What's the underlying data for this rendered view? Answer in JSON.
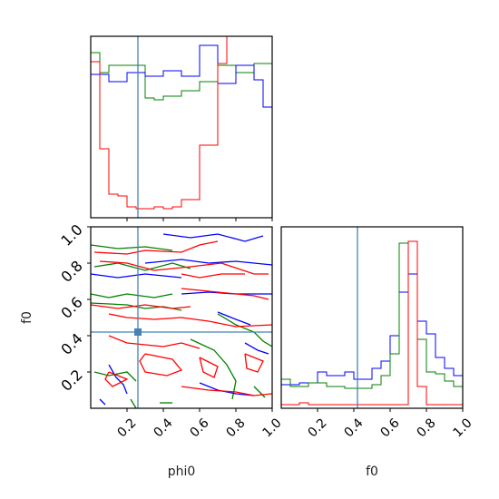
{
  "chart_data": {
    "type": "corner",
    "parameters": [
      {
        "name": "phi0",
        "range": [
          0.0,
          1.0
        ],
        "truth": 0.26,
        "ticks": [
          "0.2",
          "0.4",
          "0.6",
          "0.8",
          "1.0"
        ],
        "tick_values": [
          0.2,
          0.4,
          0.6,
          0.8,
          1.0
        ]
      },
      {
        "name": "f0",
        "range": [
          0.0,
          1.0
        ],
        "truth": 0.42,
        "ticks": [
          "0.2",
          "0.4",
          "0.6",
          "0.8",
          "1.0"
        ],
        "tick_values": [
          0.2,
          0.4,
          0.6,
          0.8,
          1.0
        ]
      }
    ],
    "series_colors": {
      "red": "#ff0000",
      "green": "#008000",
      "blue": "#0000ff",
      "truth": "#4682b4"
    },
    "hist_phi0": {
      "bin_edges": [
        0,
        0.05,
        0.1,
        0.15,
        0.2,
        0.25,
        0.3,
        0.35,
        0.4,
        0.45,
        0.5,
        0.55,
        0.6,
        0.65,
        0.7,
        0.75,
        0.8,
        0.85,
        0.9,
        0.95,
        1.0
      ],
      "ymax": 1.0,
      "green": [
        0.91,
        0.8,
        0.84,
        0.84,
        0.84,
        0.84,
        0.66,
        0.65,
        0.67,
        0.67,
        0.7,
        0.7,
        0.75,
        0.75,
        0.84,
        0.84,
        0.8,
        0.8,
        0.85,
        0.85
      ],
      "blue": [
        0.79,
        0.79,
        0.75,
        0.75,
        0.8,
        0.8,
        0.78,
        0.78,
        0.81,
        0.81,
        0.78,
        0.78,
        0.95,
        0.95,
        0.74,
        0.74,
        0.84,
        0.84,
        0.76,
        0.61
      ],
      "red": [
        0.86,
        0.38,
        0.13,
        0.12,
        0.06,
        0.05,
        0.05,
        0.06,
        0.05,
        0.06,
        0.1,
        0.1,
        0.4,
        0.4,
        0.85,
        1.05,
        1.05,
        1.05,
        1.05,
        1.05
      ]
    },
    "hist_f0": {
      "bin_edges": [
        0,
        0.05,
        0.1,
        0.15,
        0.2,
        0.25,
        0.3,
        0.35,
        0.4,
        0.45,
        0.5,
        0.55,
        0.6,
        0.65,
        0.7,
        0.75,
        0.8,
        0.85,
        0.9,
        0.95,
        1.0
      ],
      "ymax": 1.0,
      "blue": [
        0.13,
        0.13,
        0.14,
        0.14,
        0.2,
        0.18,
        0.18,
        0.2,
        0.16,
        0.16,
        0.22,
        0.26,
        0.4,
        0.64,
        0.74,
        0.48,
        0.41,
        0.28,
        0.22,
        0.18
      ],
      "green": [
        0.16,
        0.12,
        0.12,
        0.14,
        0.14,
        0.12,
        0.12,
        0.11,
        0.11,
        0.11,
        0.13,
        0.18,
        0.3,
        0.91,
        0.92,
        0.38,
        0.2,
        0.19,
        0.15,
        0.12
      ],
      "red": [
        0.02,
        0.02,
        0.03,
        0.02,
        0.02,
        0.02,
        0.02,
        0.02,
        0.02,
        0.02,
        0.02,
        0.02,
        0.02,
        0.02,
        0.92,
        0.12,
        0.02,
        0.02,
        0.02,
        0.02
      ]
    },
    "contours": {
      "red": [
        [
          [
            0.02,
            0.86
          ],
          [
            0.2,
            0.85
          ],
          [
            0.3,
            0.87
          ],
          [
            0.5,
            0.86
          ],
          [
            0.6,
            0.9
          ],
          [
            0.7,
            0.92
          ]
        ],
        [
          [
            0.05,
            0.81
          ],
          [
            0.2,
            0.8
          ],
          [
            0.35,
            0.76
          ],
          [
            0.55,
            0.78
          ],
          [
            0.72,
            0.8
          ],
          [
            0.9,
            0.74
          ],
          [
            0.98,
            0.74
          ]
        ],
        [
          [
            0.5,
            0.74
          ],
          [
            0.6,
            0.72
          ],
          [
            0.72,
            0.74
          ],
          [
            0.85,
            0.74
          ]
        ],
        [
          [
            0.5,
            0.66
          ],
          [
            0.7,
            0.64
          ],
          [
            0.9,
            0.62
          ],
          [
            0.98,
            0.6
          ]
        ],
        [
          [
            0.0,
            0.57
          ],
          [
            0.15,
            0.55
          ],
          [
            0.3,
            0.57
          ],
          [
            0.45,
            0.55
          ],
          [
            0.55,
            0.56
          ]
        ],
        [
          [
            0.1,
            0.52
          ],
          [
            0.2,
            0.5
          ],
          [
            0.35,
            0.49
          ],
          [
            0.5,
            0.5
          ],
          [
            0.65,
            0.48
          ],
          [
            0.8,
            0.45
          ],
          [
            1.0,
            0.46
          ]
        ],
        [
          [
            0.1,
            0.4
          ],
          [
            0.2,
            0.36
          ],
          [
            0.3,
            0.35
          ],
          [
            0.4,
            0.34
          ],
          [
            0.5,
            0.36
          ],
          [
            0.6,
            0.33
          ]
        ],
        [
          [
            0.3,
            0.3
          ],
          [
            0.45,
            0.27
          ],
          [
            0.5,
            0.21
          ],
          [
            0.42,
            0.18
          ],
          [
            0.3,
            0.2
          ],
          [
            0.27,
            0.26
          ],
          [
            0.3,
            0.3
          ]
        ],
        [
          [
            0.6,
            0.28
          ],
          [
            0.7,
            0.23
          ],
          [
            0.68,
            0.17
          ],
          [
            0.62,
            0.2
          ],
          [
            0.6,
            0.28
          ]
        ],
        [
          [
            0.1,
            0.2
          ],
          [
            0.2,
            0.16
          ],
          [
            0.12,
            0.12
          ],
          [
            0.08,
            0.16
          ],
          [
            0.1,
            0.2
          ]
        ],
        [
          [
            0.5,
            0.12
          ],
          [
            0.65,
            0.1
          ],
          [
            0.8,
            0.09
          ],
          [
            0.9,
            0.07
          ],
          [
            1.0,
            0.08
          ]
        ],
        [
          [
            0.85,
            0.3
          ],
          [
            0.95,
            0.26
          ],
          [
            0.92,
            0.2
          ],
          [
            0.86,
            0.22
          ],
          [
            0.85,
            0.3
          ]
        ]
      ],
      "green": [
        [
          [
            0.0,
            0.9
          ],
          [
            0.15,
            0.88
          ],
          [
            0.3,
            0.89
          ],
          [
            0.45,
            0.87
          ]
        ],
        [
          [
            0.02,
            0.78
          ],
          [
            0.15,
            0.8
          ],
          [
            0.3,
            0.76
          ],
          [
            0.45,
            0.8
          ],
          [
            0.55,
            0.77
          ]
        ],
        [
          [
            0.0,
            0.63
          ],
          [
            0.1,
            0.61
          ],
          [
            0.2,
            0.63
          ],
          [
            0.35,
            0.61
          ],
          [
            0.45,
            0.63
          ]
        ],
        [
          [
            0.0,
            0.58
          ],
          [
            0.2,
            0.57
          ],
          [
            0.3,
            0.55
          ],
          [
            0.4,
            0.56
          ],
          [
            0.5,
            0.54
          ]
        ],
        [
          [
            0.7,
            0.52
          ],
          [
            0.8,
            0.46
          ],
          [
            0.9,
            0.42
          ],
          [
            0.95,
            0.37
          ],
          [
            1.0,
            0.34
          ]
        ],
        [
          [
            0.55,
            0.38
          ],
          [
            0.68,
            0.32
          ],
          [
            0.75,
            0.24
          ],
          [
            0.8,
            0.15
          ],
          [
            0.78,
            0.05
          ]
        ],
        [
          [
            0.9,
            0.12
          ],
          [
            0.96,
            0.06
          ]
        ],
        [
          [
            0.02,
            0.2
          ],
          [
            0.1,
            0.18
          ],
          [
            0.2,
            0.2
          ],
          [
            0.25,
            0.15
          ]
        ],
        [
          [
            0.22,
            0.05
          ],
          [
            0.25,
            0.0
          ]
        ],
        [
          [
            0.38,
            0.03
          ],
          [
            0.45,
            0.03
          ]
        ]
      ],
      "blue": [
        [
          [
            0.4,
            0.96
          ],
          [
            0.55,
            0.94
          ],
          [
            0.7,
            0.96
          ],
          [
            0.85,
            0.92
          ],
          [
            0.95,
            0.95
          ]
        ],
        [
          [
            0.3,
            0.8
          ],
          [
            0.5,
            0.82
          ],
          [
            0.65,
            0.8
          ],
          [
            0.8,
            0.81
          ],
          [
            1.0,
            0.79
          ]
        ],
        [
          [
            0.0,
            0.74
          ],
          [
            0.15,
            0.72
          ],
          [
            0.3,
            0.74
          ],
          [
            0.5,
            0.72
          ]
        ],
        [
          [
            0.5,
            0.63
          ],
          [
            0.65,
            0.64
          ],
          [
            0.8,
            0.63
          ],
          [
            1.0,
            0.63
          ]
        ],
        [
          [
            0.7,
            0.53
          ],
          [
            0.8,
            0.49
          ],
          [
            0.88,
            0.46
          ]
        ],
        [
          [
            0.85,
            0.36
          ],
          [
            0.92,
            0.32
          ],
          [
            0.98,
            0.3
          ]
        ],
        [
          [
            0.1,
            0.24
          ],
          [
            0.14,
            0.17
          ],
          [
            0.18,
            0.13
          ],
          [
            0.2,
            0.08
          ]
        ],
        [
          [
            0.6,
            0.14
          ],
          [
            0.7,
            0.1
          ],
          [
            0.8,
            0.08
          ],
          [
            0.9,
            0.07
          ]
        ],
        [
          [
            0.05,
            0.05
          ],
          [
            0.08,
            0.02
          ]
        ]
      ]
    }
  }
}
